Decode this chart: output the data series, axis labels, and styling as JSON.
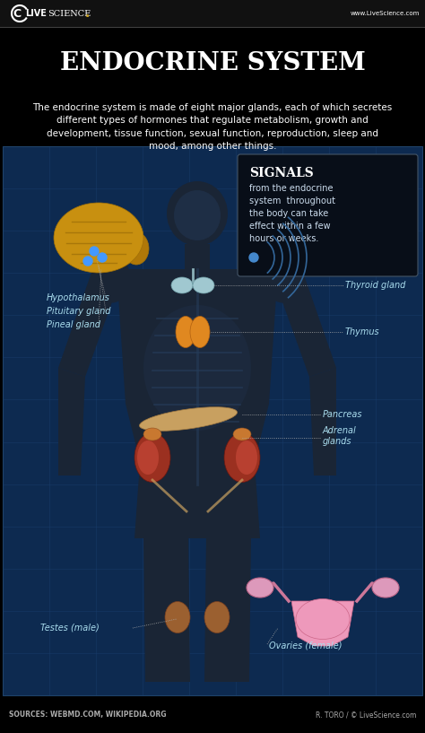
{
  "bg_black": "#000000",
  "bg_grid_blue": "#0d2a50",
  "white": "#ffffff",
  "yellow_gold": "#c8a020",
  "title": "Endocrine System",
  "subtitle": "The endocrine system is made of eight major glands, each of which secretes\ndifferent types of hormones that regulate metabolism, growth and\ndevelopment, tissue function, sexual function, reproduction, sleep and\nmood, among other things.",
  "url_text": "www.LiveScience.com",
  "signals_box_title": "Signals",
  "signals_box_text": "from the endocrine\nsystem throughout\nthe body can take\neffect within a few\nhours or weeks.",
  "sources_text": "SOURCES: WEBMD.COM, WIKIPEDIA.ORG",
  "credit_text": "R. TORO / © LiveScience.com",
  "label_color": "#aaddee",
  "line_color": "#aaaaaa",
  "body_color": "#1a2535",
  "grid_line_color": "#1a4070"
}
